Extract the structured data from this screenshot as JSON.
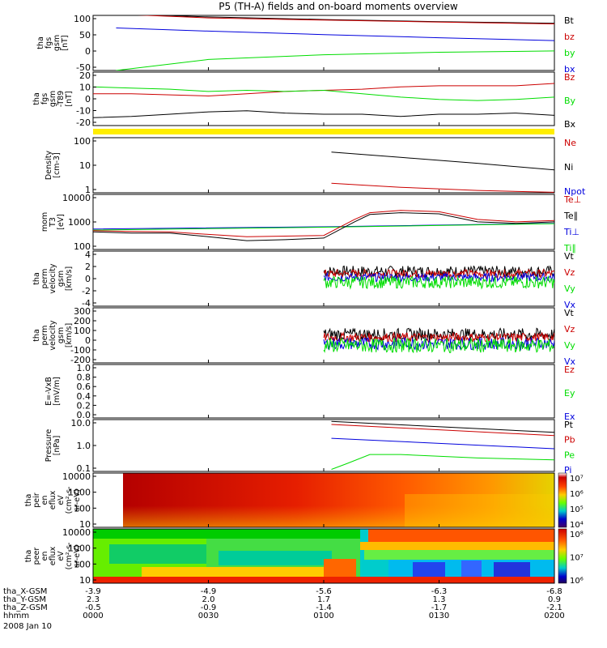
{
  "title": "P5 (TH-A) fields and on-board moments overview",
  "colors": {
    "black": "#000000",
    "red": "#cc0000",
    "green": "#00dd00",
    "blue": "#0000dd",
    "yellow": "#ffee00"
  },
  "time_axis": {
    "ticks": [
      "0000",
      "0030",
      "0100",
      "0130",
      "0200"
    ],
    "rows": [
      {
        "label": "tha_X-GSM",
        "values": [
          "-3.9",
          "-4.9",
          "-5.6",
          "-6.3",
          "-6.8"
        ]
      },
      {
        "label": "tha_Y-GSM",
        "values": [
          "2.3",
          "2.0",
          "1.7",
          "1.3",
          "0.9"
        ]
      },
      {
        "label": "tha_Z-GSM",
        "values": [
          "-0.5",
          "-0.9",
          "-1.4",
          "-1.7",
          "-2.1"
        ]
      },
      {
        "label": "hhmm",
        "values": [
          "0000",
          "0030",
          "0100",
          "0130",
          "0200"
        ]
      }
    ],
    "date": "2008 Jan 10"
  },
  "chart_data": [
    {
      "type": "line",
      "ylabel": [
        "tha",
        "fgs",
        "gsm",
        "[nT]"
      ],
      "yticks": [
        "100",
        "50",
        "0",
        "-50"
      ],
      "ylim": [
        -70,
        105
      ],
      "legend": [
        {
          "name": "Bt",
          "color": "#000000"
        },
        {
          "name": "bz",
          "color": "#cc0000"
        },
        {
          "name": "by",
          "color": "#00dd00"
        },
        {
          "name": "bx",
          "color": "#0000dd"
        }
      ],
      "series": [
        {
          "name": "Bt",
          "x": [
            0,
            10,
            30,
            60,
            90,
            120
          ],
          "y": [
            118,
            110,
            100,
            92,
            85,
            80
          ]
        },
        {
          "name": "bz",
          "x": [
            0,
            10,
            30,
            60,
            90,
            120
          ],
          "y": [
            115,
            107,
            97,
            90,
            84,
            78
          ]
        },
        {
          "name": "bx",
          "x": [
            6,
            30,
            60,
            90,
            120
          ],
          "y": [
            65,
            55,
            44,
            34,
            25
          ]
        },
        {
          "name": "by",
          "x": [
            6,
            30,
            60,
            90,
            120
          ],
          "y": [
            -70,
            -35,
            -20,
            -12,
            -8
          ]
        }
      ]
    },
    {
      "type": "line",
      "ylabel": [
        "tha",
        "fgs",
        "gsm",
        "-T89",
        "[nT]"
      ],
      "yticks": [
        "20",
        "10",
        "0",
        "-10",
        "-20"
      ],
      "ylim": [
        -25,
        22
      ],
      "legend": [
        {
          "name": "Bz",
          "color": "#cc0000"
        },
        {
          "name": "By",
          "color": "#00dd00"
        },
        {
          "name": "Bx",
          "color": "#000000"
        }
      ],
      "series": [
        {
          "name": "Bz",
          "x": [
            0,
            10,
            20,
            30,
            40,
            50,
            60,
            70,
            80,
            90,
            100,
            110,
            120
          ],
          "y": [
            3,
            3,
            2,
            1,
            3,
            5,
            6,
            7,
            9,
            10,
            10,
            10,
            12
          ]
        },
        {
          "name": "By",
          "x": [
            0,
            10,
            20,
            30,
            40,
            50,
            60,
            70,
            80,
            90,
            100,
            110,
            120
          ],
          "y": [
            9,
            8,
            7,
            5,
            6,
            5,
            6,
            3,
            0,
            -2,
            -3,
            -2,
            0
          ]
        },
        {
          "name": "Bx",
          "x": [
            0,
            10,
            20,
            30,
            40,
            50,
            60,
            70,
            80,
            90,
            100,
            110,
            120
          ],
          "y": [
            -18,
            -17,
            -15,
            -13,
            -12,
            -14,
            -15,
            -15,
            -17,
            -15,
            -15,
            -14,
            -16
          ]
        }
      ]
    },
    {
      "type": "log-line",
      "ylabel": [
        "Density",
        "[cm-3]"
      ],
      "yticks": [
        "100",
        "10",
        "1"
      ],
      "ylim": [
        1,
        200
      ],
      "legend": [
        {
          "name": "Ne",
          "color": "#cc0000"
        },
        {
          "name": "Ni",
          "color": "#000000"
        },
        {
          "name": "Npot",
          "color": "#0000dd"
        }
      ],
      "series": [
        {
          "name": "Ni",
          "x": [
            62,
            80,
            100,
            120
          ],
          "y": [
            50,
            30,
            17,
            9
          ]
        },
        {
          "name": "Ne",
          "x": [
            62,
            70,
            80,
            100,
            120
          ],
          "y": [
            2.5,
            2.1,
            1.7,
            1.25,
            1.05
          ]
        }
      ]
    },
    {
      "type": "log-line",
      "ylabel": [
        "mom",
        "T3",
        "[eV]"
      ],
      "yticks": [
        "10000",
        "1000",
        "100"
      ],
      "ylim": [
        40,
        12000
      ],
      "legend": [
        {
          "name": "Te⊥",
          "color": "#cc0000"
        },
        {
          "name": "Te∥",
          "color": "#000000"
        },
        {
          "name": "Ti⊥",
          "color": "#0000dd"
        },
        {
          "name": "Ti∥",
          "color": "#00dd00"
        }
      ],
      "series": [
        {
          "name": "Ti⊥",
          "x": [
            0,
            60,
            120
          ],
          "y": [
            330,
            420,
            600
          ]
        },
        {
          "name": "Ti∥",
          "x": [
            0,
            60,
            120
          ],
          "y": [
            300,
            400,
            580
          ]
        },
        {
          "name": "Te⊥",
          "x": [
            0,
            10,
            20,
            30,
            40,
            50,
            60,
            68,
            72,
            80,
            90,
            100,
            110,
            120
          ],
          "y": [
            280,
            260,
            250,
            190,
            150,
            160,
            170,
            900,
            1800,
            2300,
            2000,
            900,
            700,
            800
          ]
        },
        {
          "name": "Te∥",
          "x": [
            0,
            10,
            20,
            30,
            40,
            50,
            60,
            68,
            72,
            80,
            90,
            100,
            110,
            120
          ],
          "y": [
            250,
            220,
            220,
            150,
            100,
            110,
            130,
            700,
            1500,
            1800,
            1600,
            700,
            600,
            700
          ]
        }
      ]
    },
    {
      "type": "line",
      "ylabel": [
        "tha",
        "perm",
        "velocity",
        "gsm",
        "[km/s]"
      ],
      "yticks": [
        "4",
        "2",
        "0",
        "-2",
        "-4"
      ],
      "ylim": [
        -4.5,
        4.5
      ],
      "legend": [
        {
          "name": "Vt",
          "color": "#000000"
        },
        {
          "name": "Vz",
          "color": "#cc0000"
        },
        {
          "name": "Vy",
          "color": "#00dd00"
        },
        {
          "name": "Vx",
          "color": "#0000dd"
        }
      ],
      "series": [
        {
          "name": "Vt",
          "x_start": 60,
          "x_end": 120,
          "mean": 1.2,
          "amp": 0.9
        },
        {
          "name": "Vz",
          "x_start": 60,
          "x_end": 120,
          "mean": 0.8,
          "amp": 0.7
        },
        {
          "name": "Vx",
          "x_start": 60,
          "x_end": 120,
          "mean": 0.2,
          "amp": 0.7
        },
        {
          "name": "Vy",
          "x_start": 60,
          "x_end": 120,
          "mean": -0.6,
          "amp": 1.0
        }
      ]
    },
    {
      "type": "line",
      "ylabel": [
        "tha",
        "perm",
        "velocity",
        "gsm",
        "[km/s]"
      ],
      "yticks": [
        "300",
        "200",
        "100",
        "0",
        "-100",
        "-200"
      ],
      "ylim": [
        -220,
        320
      ],
      "legend": [
        {
          "name": "Vt",
          "color": "#000000"
        },
        {
          "name": "Vz",
          "color": "#cc0000"
        },
        {
          "name": "Vy",
          "color": "#00dd00"
        },
        {
          "name": "Vx",
          "color": "#0000dd"
        }
      ],
      "series": [
        {
          "name": "Vt",
          "x_start": 60,
          "x_end": 120,
          "mean": 60,
          "amp": 60
        },
        {
          "name": "Vz",
          "x_start": 60,
          "x_end": 120,
          "mean": 30,
          "amp": 45
        },
        {
          "name": "Vx",
          "x_start": 60,
          "x_end": 120,
          "mean": -30,
          "amp": 60
        },
        {
          "name": "Vy",
          "x_start": 60,
          "x_end": 120,
          "mean": -50,
          "amp": 70
        }
      ]
    },
    {
      "type": "line",
      "ylabel": [
        "E=-VxB",
        "[mV/m]"
      ],
      "yticks": [
        "1.0",
        "0.8",
        "0.6",
        "0.4",
        "0.2",
        "0.0"
      ],
      "ylim": [
        0,
        1.0
      ],
      "legend": [
        {
          "name": "Ez",
          "color": "#cc0000"
        },
        {
          "name": "Ey",
          "color": "#00dd00"
        },
        {
          "name": "Ex",
          "color": "#0000dd"
        }
      ],
      "series": []
    },
    {
      "type": "log-line",
      "ylabel": [
        "Pressure",
        "[nPa]"
      ],
      "yticks": [
        "10.0",
        "1.0",
        "0.1"
      ],
      "ylim": [
        0.1,
        10
      ],
      "legend": [
        {
          "name": "Pt",
          "color": "#000000"
        },
        {
          "name": "Pb",
          "color": "#cc0000"
        },
        {
          "name": "Pe",
          "color": "#00dd00"
        },
        {
          "name": "Pi",
          "color": "#0000dd"
        }
      ],
      "series": [
        {
          "name": "Pt",
          "x": [
            62,
            120
          ],
          "y": [
            8.5,
            3.2
          ]
        },
        {
          "name": "Pb",
          "x": [
            62,
            120
          ],
          "y": [
            6.5,
            2.4
          ]
        },
        {
          "name": "Pi",
          "x": [
            62,
            120
          ],
          "y": [
            1.9,
            0.75
          ]
        },
        {
          "name": "Pe",
          "x": [
            62,
            66,
            72,
            80,
            100,
            120
          ],
          "y": [
            0.12,
            0.2,
            0.45,
            0.45,
            0.33,
            0.28
          ]
        }
      ]
    },
    {
      "type": "heatmap",
      "ylabel": [
        "tha",
        "peir",
        "en",
        "eflux",
        "eV",
        "(cm²-s-",
        "sr-eV)"
      ],
      "yticks": [
        "10000",
        "1000",
        "100",
        "10"
      ],
      "colorbar": [
        "10⁷",
        "10⁶",
        "10⁵",
        "10⁴"
      ]
    },
    {
      "type": "heatmap",
      "ylabel": [
        "tha",
        "peer",
        "en",
        "eflux",
        "eV",
        "(cm²-s-",
        "sr-eV)"
      ],
      "yticks": [
        "10000",
        "1000",
        "100",
        "10"
      ],
      "colorbar": [
        "10⁸",
        "10⁷",
        "10⁶"
      ]
    }
  ]
}
